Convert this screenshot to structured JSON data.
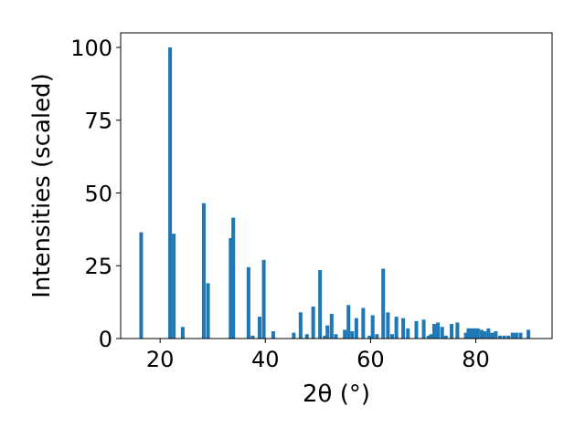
{
  "chart_data": {
    "type": "bar",
    "xlabel": "2θ (°)",
    "ylabel": "Intensities (scaled)",
    "xlim": [
      12.5,
      94.5
    ],
    "ylim": [
      0,
      105
    ],
    "xticks": [
      20,
      40,
      60,
      80
    ],
    "yticks": [
      0,
      25,
      50,
      75,
      100
    ],
    "bar_width": 0.7,
    "bar_color": "#1f77b4",
    "grid": false,
    "x": [
      16.4,
      21.9,
      22.6,
      24.3,
      28.3,
      29.1,
      33.4,
      33.9,
      36.8,
      37.6,
      38.9,
      39.7,
      41.5,
      45.4,
      46.7,
      47.9,
      49.1,
      50.4,
      51.3,
      51.8,
      52.6,
      53.4,
      55.1,
      55.8,
      56.5,
      57.3,
      58.6,
      59.8,
      60.4,
      61.2,
      62.4,
      63.3,
      64.1,
      64.9,
      66.2,
      67.1,
      68.7,
      70.1,
      71.0,
      71.5,
      72.1,
      72.8,
      73.6,
      74.3,
      75.4,
      76.5,
      78.1,
      78.6,
      79.2,
      79.8,
      80.4,
      81.1,
      81.7,
      82.4,
      83.1,
      83.8,
      84.6,
      85.4,
      86.2,
      87.0,
      87.7,
      88.5,
      90.0
    ],
    "values": [
      36.5,
      100,
      36,
      4,
      46.5,
      19,
      34.5,
      41.5,
      24.5,
      1,
      7.5,
      27,
      2.5,
      2,
      9,
      1.5,
      11,
      23.5,
      1,
      4.5,
      8.5,
      1.5,
      3,
      11.5,
      2.5,
      7,
      10.5,
      1,
      8,
      1.5,
      24,
      9,
      1.5,
      7.5,
      7,
      3.5,
      6,
      6.5,
      1,
      1.5,
      5,
      5.5,
      4,
      1,
      5,
      5.5,
      2,
      3.5,
      3.5,
      3.5,
      3.5,
      3,
      2.5,
      3.5,
      2,
      2.5,
      1,
      1,
      1,
      2,
      2,
      2,
      3
    ]
  }
}
